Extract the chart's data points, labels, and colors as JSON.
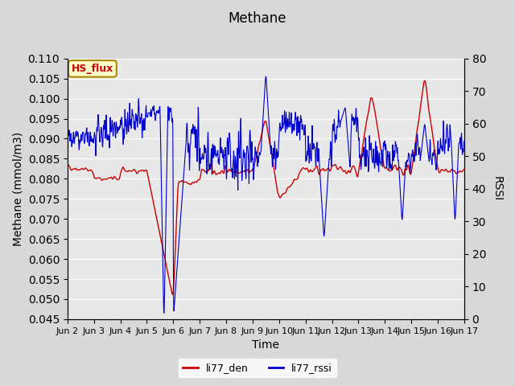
{
  "title": "Methane",
  "xlabel": "Time",
  "ylabel_left": "Methane (mmol/m3)",
  "ylabel_right": "RSSI",
  "ylim_left": [
    0.045,
    0.11
  ],
  "ylim_right": [
    0.0,
    80.0
  ],
  "xtick_labels": [
    "Jun 2",
    "Jun 3",
    "Jun 4",
    "Jun 5",
    "Jun 6",
    "Jun 7",
    "Jun 8",
    "Jun 9",
    "Jun 10",
    "Jun 11",
    "Jun 12",
    "Jun 13",
    "Jun 14",
    "Jun 15",
    "Jun 16",
    "Jun 17"
  ],
  "legend_labels": [
    "li77_den",
    "li77_rssi"
  ],
  "legend_colors": [
    "#cc0000",
    "#0000cc"
  ],
  "hs_flux_label": "HS_flux",
  "hs_flux_color": "#cc0000",
  "hs_flux_bg": "#ffffcc",
  "hs_flux_border": "#aa8800",
  "background_color": "#e8e8e8",
  "line_color_red": "#cc0000",
  "line_color_blue": "#0000cc",
  "n_points": 1500
}
